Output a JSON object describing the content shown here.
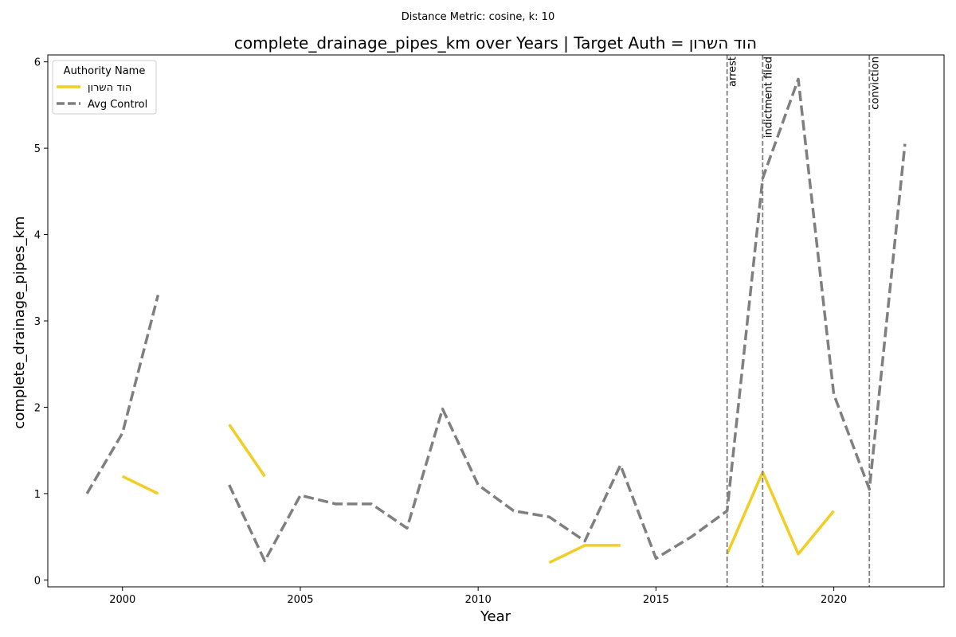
{
  "suptitle": "Distance Metric: cosine, k: 10",
  "chart_data": {
    "type": "line",
    "title": "complete_drainage_pipes_km over Years | Target Auth = הוד השרון",
    "xlabel": "Year",
    "ylabel": "complete_drainage_pipes_km",
    "xlim": [
      1997.9,
      2023.1
    ],
    "ylim": [
      -0.08,
      6.08
    ],
    "xticks": [
      2000,
      2005,
      2010,
      2015,
      2020
    ],
    "yticks": [
      0,
      1,
      2,
      3,
      4,
      5,
      6
    ],
    "grid": false,
    "legend": {
      "title": "Authority Name",
      "placement": "top-left"
    },
    "series": [
      {
        "name": "הוד השרון",
        "color": "#f2cd23",
        "style": "solid",
        "x": [
          1999,
          2000,
          2001,
          2002,
          2003,
          2004,
          2005,
          2006,
          2007,
          2008,
          2009,
          2010,
          2011,
          2012,
          2013,
          2014,
          2015,
          2016,
          2017,
          2018,
          2019,
          2020,
          2021,
          2022
        ],
        "values": [
          null,
          1.2,
          1.0,
          null,
          1.8,
          1.2,
          null,
          null,
          null,
          null,
          null,
          null,
          null,
          0.2,
          0.4,
          0.4,
          null,
          null,
          0.3,
          1.25,
          0.3,
          0.8,
          null,
          null
        ]
      },
      {
        "name": "Avg Control",
        "color": "#7f7f7f",
        "style": "dashed",
        "x": [
          1999,
          2000,
          2001,
          2002,
          2003,
          2004,
          2005,
          2006,
          2007,
          2008,
          2009,
          2010,
          2011,
          2012,
          2013,
          2014,
          2015,
          2016,
          2017,
          2018,
          2019,
          2020,
          2021,
          2022
        ],
        "values": [
          1.0,
          1.7,
          3.3,
          null,
          1.1,
          0.22,
          0.98,
          0.88,
          0.88,
          0.6,
          1.98,
          1.1,
          0.8,
          0.73,
          0.45,
          1.33,
          0.25,
          0.5,
          0.8,
          4.65,
          5.8,
          2.15,
          1.05,
          5.05
        ]
      }
    ],
    "events": [
      {
        "x": 2017,
        "label": "arrest"
      },
      {
        "x": 2018,
        "label": "indictment filed"
      },
      {
        "x": 2021,
        "label": "conviction"
      }
    ]
  }
}
